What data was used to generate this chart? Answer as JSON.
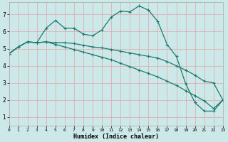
{
  "xlabel": "Humidex (Indice chaleur)",
  "bg_color": "#cce8e8",
  "grid_color": "#e0b0b0",
  "line_color": "#1a7a6e",
  "xlim": [
    0,
    23
  ],
  "ylim": [
    0.5,
    7.7
  ],
  "xticks": [
    0,
    1,
    2,
    3,
    4,
    5,
    6,
    7,
    8,
    9,
    10,
    11,
    12,
    13,
    14,
    15,
    16,
    17,
    18,
    19,
    20,
    21,
    22,
    23
  ],
  "yticks": [
    1,
    2,
    3,
    4,
    5,
    6,
    7
  ],
  "line_main_y": [
    4.7,
    5.1,
    5.4,
    5.35,
    6.2,
    6.65,
    6.2,
    6.2,
    5.85,
    5.75,
    6.1,
    6.85,
    7.2,
    7.15,
    7.5,
    7.25,
    6.6,
    5.25,
    4.55,
    2.95,
    1.85,
    1.35,
    1.35,
    2.0
  ],
  "line_mid_y": [
    4.7,
    5.1,
    5.4,
    5.35,
    5.4,
    5.35,
    5.35,
    5.3,
    5.2,
    5.1,
    5.05,
    4.95,
    4.85,
    4.75,
    4.65,
    4.55,
    4.45,
    4.25,
    4.0,
    3.75,
    3.45,
    3.1,
    3.0,
    2.0
  ],
  "line_bot_y": [
    4.7,
    5.1,
    5.4,
    5.35,
    5.4,
    5.25,
    5.1,
    4.95,
    4.8,
    4.65,
    4.5,
    4.35,
    4.15,
    3.95,
    3.75,
    3.55,
    3.35,
    3.1,
    2.85,
    2.55,
    2.25,
    1.95,
    1.5,
    2.0
  ]
}
